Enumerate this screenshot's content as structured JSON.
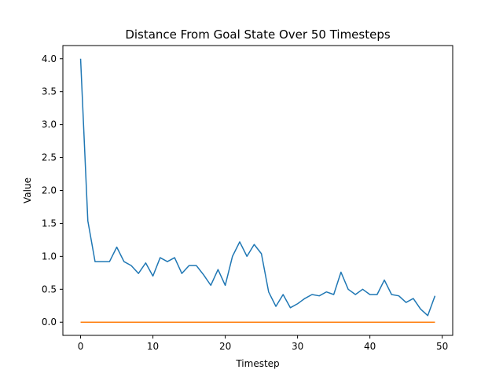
{
  "chart_data": {
    "type": "line",
    "title": "Distance From Goal State Over 50 Timesteps",
    "xlabel": "Timestep",
    "ylabel": "Value",
    "xlim": [
      -2.45,
      51.45
    ],
    "ylim": [
      -0.2,
      4.2
    ],
    "xticks": [
      0,
      10,
      20,
      30,
      40,
      50
    ],
    "yticks": [
      0.0,
      0.5,
      1.0,
      1.5,
      2.0,
      2.5,
      3.0,
      3.5,
      4.0
    ],
    "ytick_labels": [
      "0.0",
      "0.5",
      "1.0",
      "1.5",
      "2.0",
      "2.5",
      "3.0",
      "3.5",
      "4.0"
    ],
    "grid": false,
    "x": [
      0,
      1,
      2,
      3,
      4,
      5,
      6,
      7,
      8,
      9,
      10,
      11,
      12,
      13,
      14,
      15,
      16,
      17,
      18,
      19,
      20,
      21,
      22,
      23,
      24,
      25,
      26,
      27,
      28,
      29,
      30,
      31,
      32,
      33,
      34,
      35,
      36,
      37,
      38,
      39,
      40,
      41,
      42,
      43,
      44,
      45,
      46,
      47,
      48,
      49
    ],
    "series": [
      {
        "color": "#1f77b4",
        "values": [
          4.0,
          1.54,
          0.92,
          0.92,
          0.92,
          1.14,
          0.92,
          0.86,
          0.74,
          0.9,
          0.7,
          0.98,
          0.92,
          0.98,
          0.74,
          0.86,
          0.86,
          0.72,
          0.56,
          0.8,
          0.56,
          1.0,
          1.22,
          1.0,
          1.18,
          1.04,
          0.46,
          0.24,
          0.42,
          0.22,
          0.28,
          0.36,
          0.42,
          0.4,
          0.46,
          0.42,
          0.76,
          0.5,
          0.42,
          0.5,
          0.42,
          0.42,
          0.64,
          0.42,
          0.4,
          0.3,
          0.36,
          0.2,
          0.1,
          0.4
        ]
      },
      {
        "color": "#ff7f0e",
        "values": [
          0,
          0,
          0,
          0,
          0,
          0,
          0,
          0,
          0,
          0,
          0,
          0,
          0,
          0,
          0,
          0,
          0,
          0,
          0,
          0,
          0,
          0,
          0,
          0,
          0,
          0,
          0,
          0,
          0,
          0,
          0,
          0,
          0,
          0,
          0,
          0,
          0,
          0,
          0,
          0,
          0,
          0,
          0,
          0,
          0,
          0,
          0,
          0,
          0,
          0
        ]
      }
    ]
  }
}
